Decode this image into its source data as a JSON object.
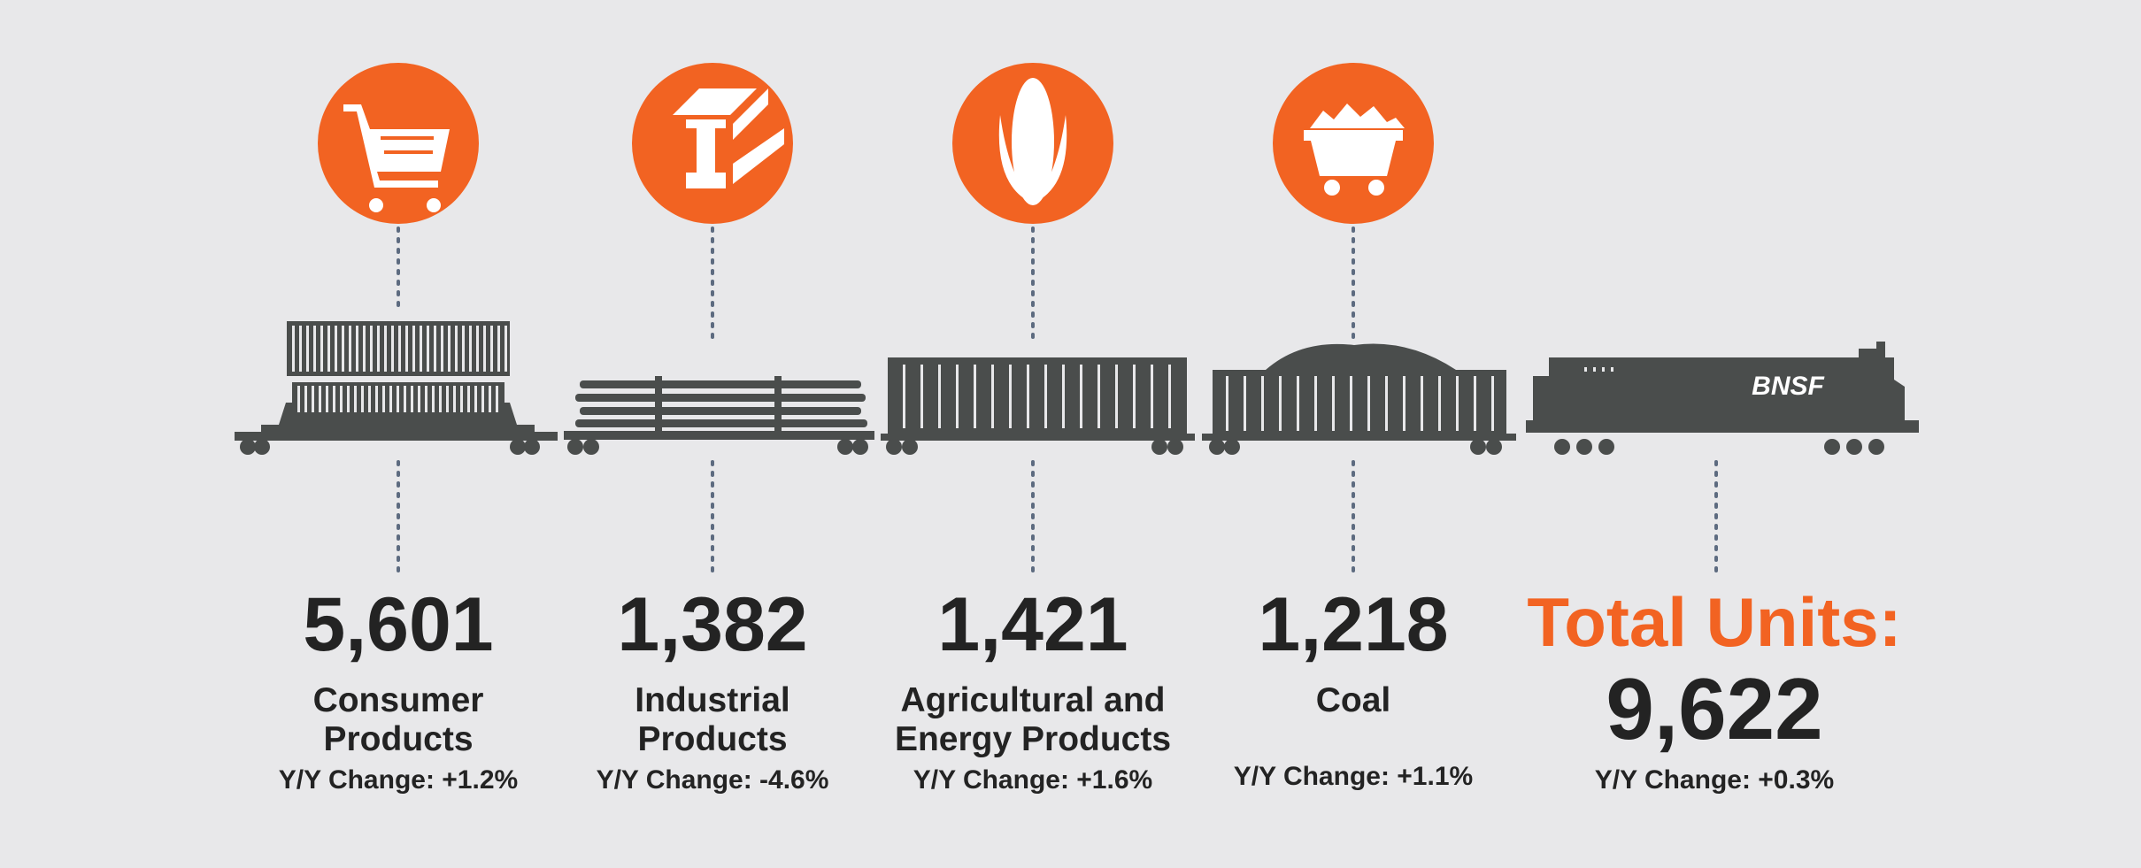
{
  "items": [
    {
      "value": "5,601",
      "label": [
        "Consumer",
        "Products"
      ],
      "change": "Y/Y Change: +1.2%"
    },
    {
      "value": "1,382",
      "label": [
        "Industrial",
        "Products"
      ],
      "change": "Y/Y Change: -4.6%"
    },
    {
      "value": "1,421",
      "label": [
        "Agricultural and",
        "Energy Products"
      ],
      "change": "Y/Y Change: +1.6%"
    },
    {
      "value": "1,218",
      "label": [
        "Coal"
      ],
      "change": "Y/Y Change: +1.1%"
    }
  ],
  "total": {
    "title": "Total Units:",
    "value": "9,622",
    "change": "Y/Y Change: +0.3%"
  },
  "locomotive_logo": "BNSF"
}
